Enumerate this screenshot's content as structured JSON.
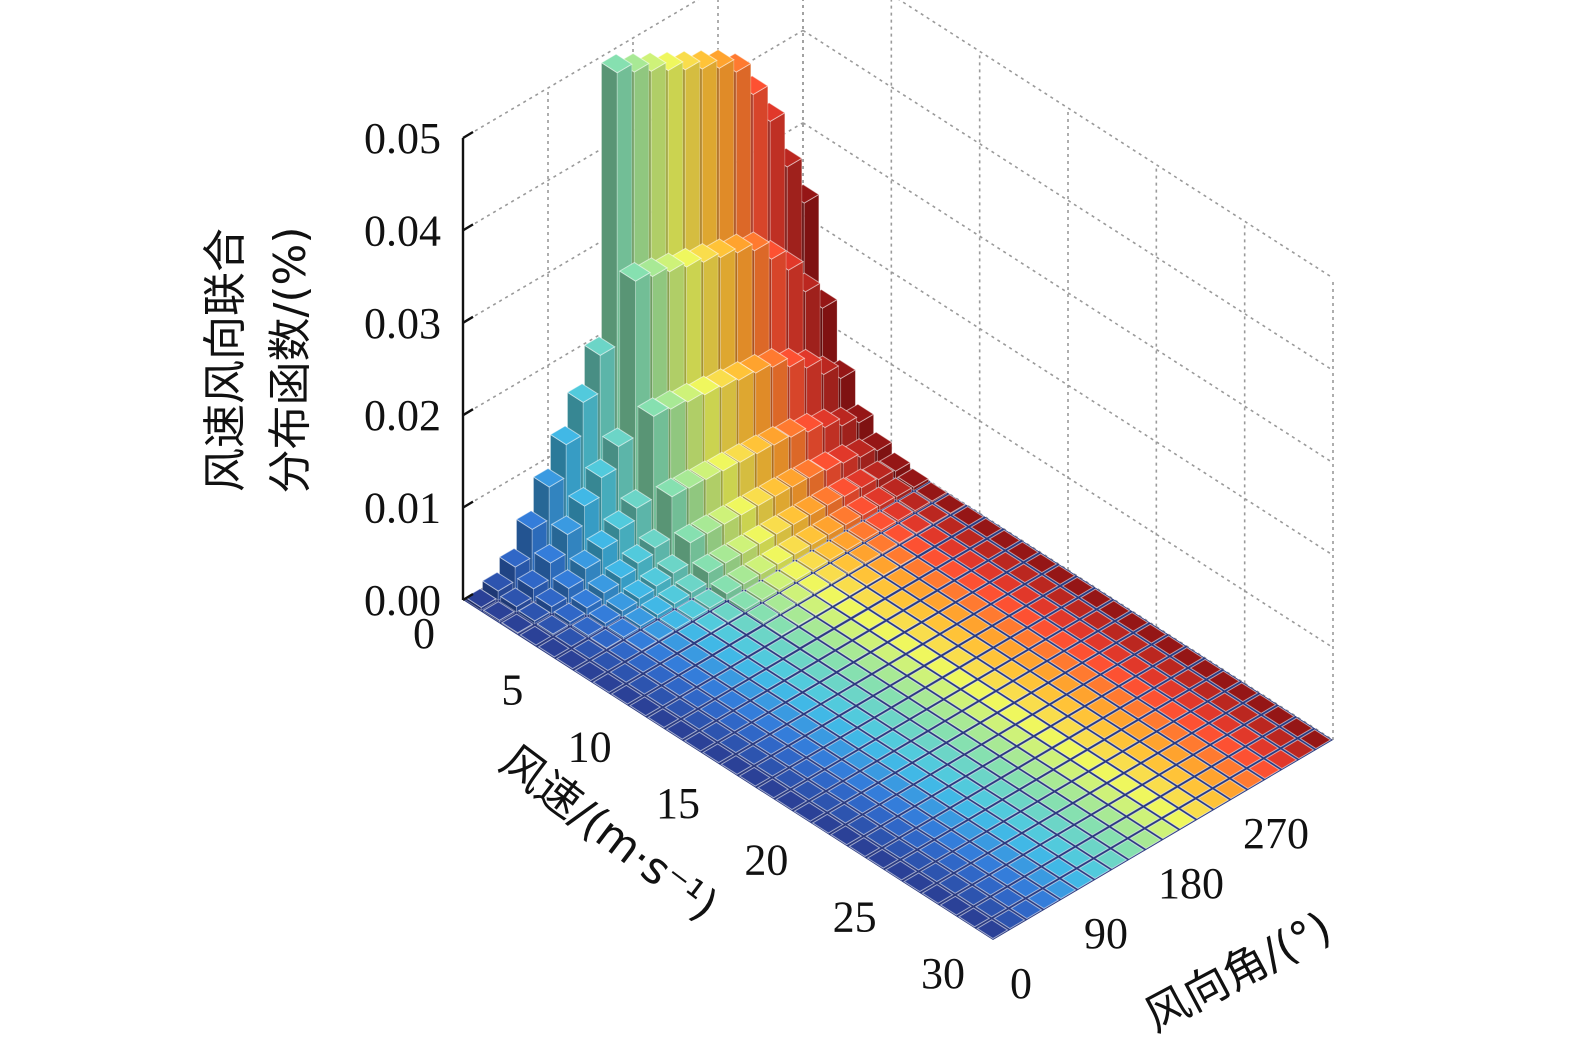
{
  "chart_data": {
    "type": "bar3d",
    "title": "",
    "zlabel_lines": [
      "风速风向联合",
      "分布函数/(%)"
    ],
    "xlabel": "风速/(m·s⁻¹)",
    "ylabel": "风向角/(°)",
    "z_ticks": [
      "0.00",
      "0.01",
      "0.02",
      "0.03",
      "0.04",
      "0.05"
    ],
    "speed_ticks": [
      "0",
      "5",
      "10",
      "15",
      "20",
      "25",
      "30"
    ],
    "direction_ticks": [
      "0",
      "90",
      "180",
      "270"
    ],
    "zlim": [
      0,
      0.05
    ],
    "speed_range": [
      0,
      30
    ],
    "direction_range": [
      0,
      360
    ],
    "grid": true,
    "speed_bins": 29,
    "direction_bins": 20,
    "low_speed_profile": {
      "speed": 1,
      "direction_bins": [
        0,
        1,
        2,
        3,
        4,
        5,
        6,
        7,
        8,
        9,
        10,
        11,
        12,
        13,
        14,
        15,
        16,
        17,
        18,
        19
      ],
      "values": [
        0.0003,
        0.001,
        0.0025,
        0.0055,
        0.009,
        0.0125,
        0.016,
        0.02,
        0.0495,
        0.0485,
        0.0475,
        0.0465,
        0.0455,
        0.0445,
        0.0435,
        0.042,
        0.0385,
        0.0345,
        0.0285,
        0.0235
      ]
    },
    "decay_note_values": {
      "speeds": [
        1,
        2,
        3,
        4,
        5,
        6,
        7,
        8
      ],
      "relative_heights": [
        1.0,
        0.57,
        0.3,
        0.15,
        0.075,
        0.035,
        0.015,
        0.006
      ]
    },
    "colormap": [
      "#283c8c",
      "#2e6cc8",
      "#3fb6d8",
      "#7fd0a0",
      "#dce85a",
      "#f6a72a",
      "#e9402e",
      "#8a1414"
    ]
  }
}
